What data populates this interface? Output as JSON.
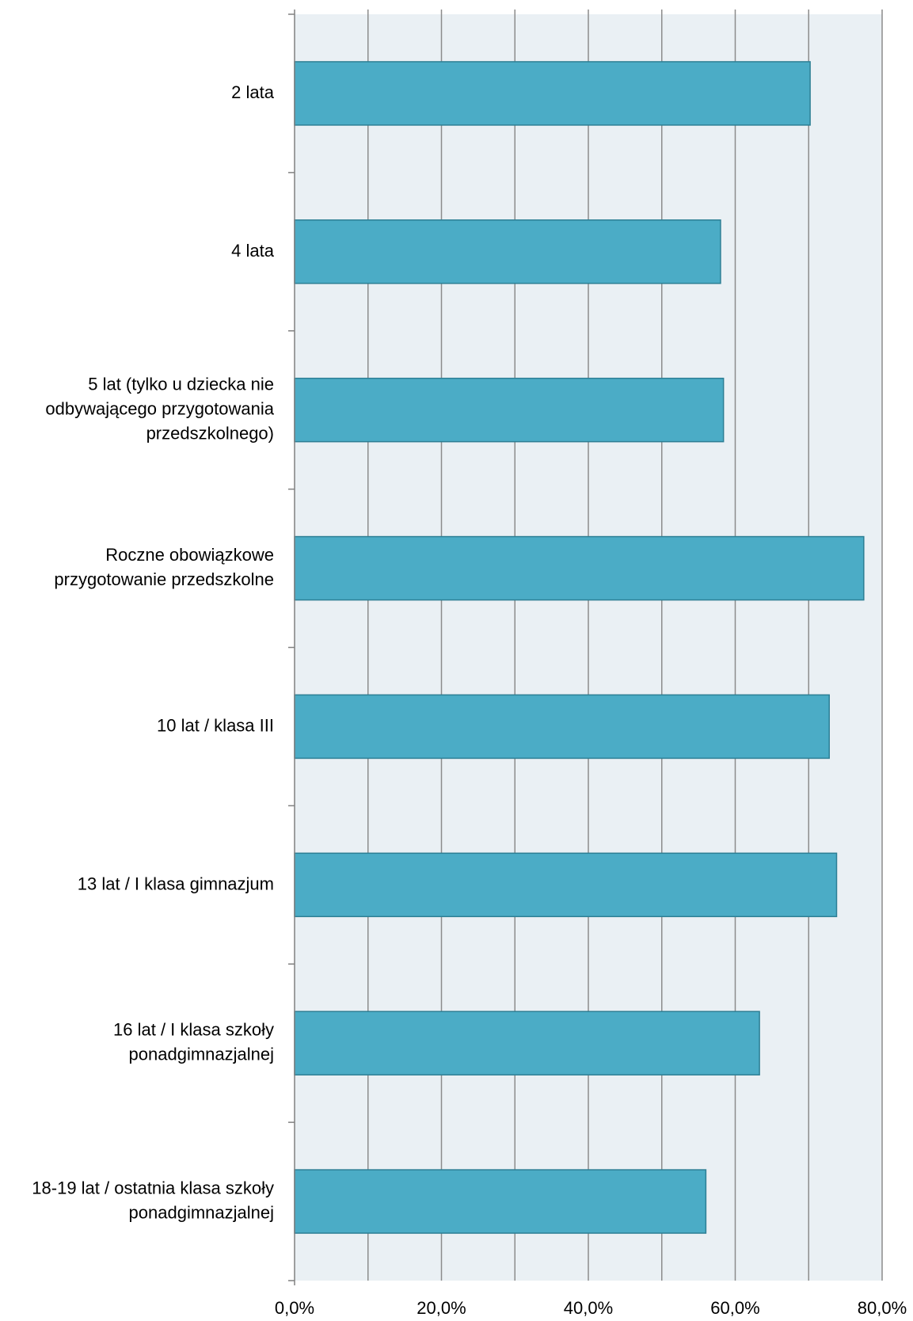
{
  "colors": {
    "plot_background": "#eaf0f4",
    "bar_fill": "#4bacc6",
    "bar_stroke": "#2d7f95",
    "gridline": "#8c8c8c",
    "axis": "#808080",
    "text": "#000000"
  },
  "chart_data": {
    "type": "bar",
    "orientation": "horizontal",
    "categories": [
      "2 lata",
      "4 lata",
      "5 lat (tylko u dziecka nie odbywającego przygotowania przedszkolnego)",
      "Roczne obowiązkowe przygotowanie przedszkolne",
      "10 lat / klasa III",
      "13 lat / I klasa gimnazjum",
      "16 lat / I klasa szkoły ponadgimnazjalnej",
      "18-19 lat / ostatnia klasa szkoły ponadgimnazjalnej"
    ],
    "category_label_lines": [
      [
        "2 lata"
      ],
      [
        "4 lata"
      ],
      [
        "5 lat (tylko u dziecka nie",
        "odbywającego przygotowania",
        "przedszkolnego)"
      ],
      [
        "Roczne obowiązkowe",
        "przygotowanie przedszkolne"
      ],
      [
        "10 lat / klasa III"
      ],
      [
        "13 lat / I klasa gimnazjum"
      ],
      [
        "16 lat / I klasa szkoły",
        "ponadgimnazjalnej"
      ],
      [
        "18-19 lat / ostatnia klasa szkoły",
        "ponadgimnazjalnej"
      ]
    ],
    "values": [
      70.2,
      58.0,
      58.4,
      77.5,
      72.8,
      73.8,
      63.3,
      56.0
    ],
    "xlim": [
      0,
      80
    ],
    "x_ticks": [
      0,
      20,
      40,
      60,
      80
    ],
    "x_tick_labels": [
      "0,0%",
      "20,0%",
      "40,0%",
      "60,0%",
      "80,0%"
    ],
    "minor_gridlines": [
      10,
      30,
      50,
      70
    ],
    "grid": true,
    "legend": "none",
    "title": "",
    "xlabel": "",
    "ylabel": ""
  }
}
